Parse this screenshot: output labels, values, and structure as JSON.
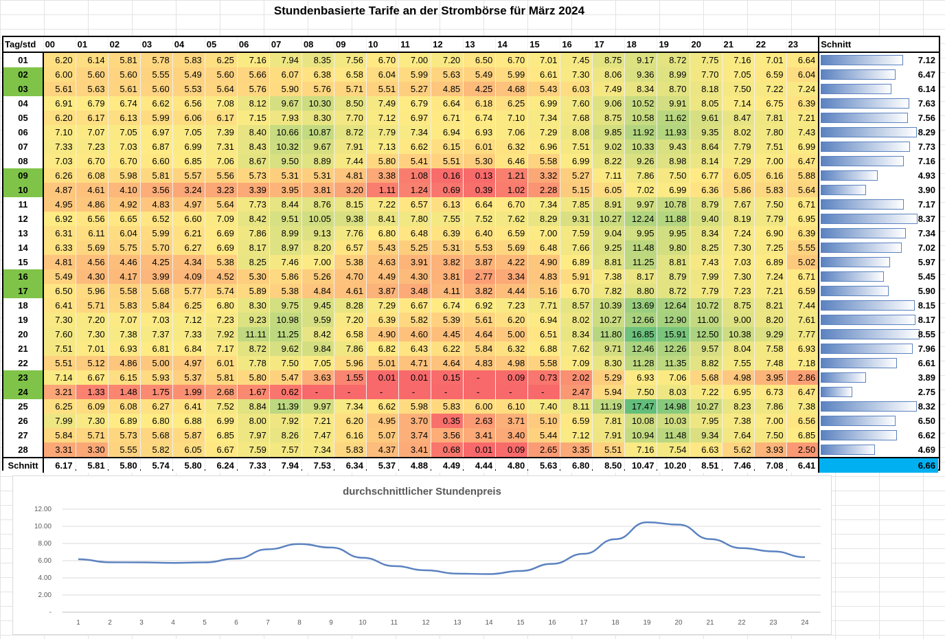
{
  "title": "Stundenbasierte Tarife an der Strombörse für März 2024",
  "table": {
    "corner_label": "Tag/std",
    "avg_label": "Schnitt",
    "footer_label": "Schnitt",
    "hours": [
      "00",
      "01",
      "02",
      "03",
      "04",
      "05",
      "06",
      "07",
      "08",
      "09",
      "10",
      "11",
      "12",
      "13",
      "14",
      "15",
      "16",
      "17",
      "18",
      "19",
      "20",
      "21",
      "22",
      "23"
    ],
    "highlighted_days": [
      "02",
      "03",
      "09",
      "10",
      "16",
      "17",
      "23",
      "24"
    ],
    "rows": [
      {
        "day": "01",
        "vals": [
          "6.20",
          "6.14",
          "5.81",
          "5.78",
          "5.83",
          "6.25",
          "7.16",
          "7.94",
          "8.35",
          "7.56",
          "6.70",
          "7.00",
          "7.20",
          "6.50",
          "6.70",
          "7.01",
          "7.45",
          "8.75",
          "9.17",
          "8.72",
          "7.75",
          "7.16",
          "7.01",
          "6.64"
        ],
        "avg": "7.12"
      },
      {
        "day": "02",
        "vals": [
          "6.00",
          "5.60",
          "5.60",
          "5.55",
          "5.49",
          "5.60",
          "5.66",
          "6.07",
          "6.38",
          "6.58",
          "6.04",
          "5.99",
          "5.63",
          "5.49",
          "5.99",
          "6.61",
          "7.30",
          "8.06",
          "9.36",
          "8.99",
          "7.70",
          "7.05",
          "6.59",
          "6.04"
        ],
        "avg": "6.47"
      },
      {
        "day": "03",
        "vals": [
          "5.61",
          "5.63",
          "5.61",
          "5.60",
          "5.53",
          "5.64",
          "5.76",
          "5.90",
          "5.76",
          "5.71",
          "5.51",
          "5.27",
          "4.85",
          "4.25",
          "4.68",
          "5.43",
          "6.03",
          "7.49",
          "8.34",
          "8.70",
          "8.18",
          "7.50",
          "7.22",
          "7.24"
        ],
        "avg": "6.14"
      },
      {
        "day": "04",
        "vals": [
          "6.91",
          "6.79",
          "6.74",
          "6.62",
          "6.56",
          "7.08",
          "8.12",
          "9.67",
          "10.30",
          "8.50",
          "7.49",
          "6.79",
          "6.64",
          "6.18",
          "6.25",
          "6.99",
          "7.60",
          "9.06",
          "10.52",
          "9.91",
          "8.05",
          "7.14",
          "6.75",
          "6.39"
        ],
        "avg": "7.63"
      },
      {
        "day": "05",
        "vals": [
          "6.20",
          "6.17",
          "6.13",
          "5.99",
          "6.06",
          "6.17",
          "7.15",
          "7.93",
          "8.30",
          "7.70",
          "7.12",
          "6.97",
          "6.71",
          "6.74",
          "7.10",
          "7.34",
          "7.68",
          "8.75",
          "10.58",
          "11.62",
          "9.61",
          "8.47",
          "7.81",
          "7.21"
        ],
        "avg": "7.56"
      },
      {
        "day": "06",
        "vals": [
          "7.10",
          "7.07",
          "7.05",
          "6.97",
          "7.05",
          "7.39",
          "8.40",
          "10.66",
          "10.87",
          "8.72",
          "7.79",
          "7.34",
          "6.94",
          "6.93",
          "7.06",
          "7.29",
          "8.08",
          "9.85",
          "11.92",
          "11.93",
          "9.35",
          "8.02",
          "7.80",
          "7.43"
        ],
        "avg": "8.29"
      },
      {
        "day": "07",
        "vals": [
          "7.33",
          "7.23",
          "7.03",
          "6.87",
          "6.99",
          "7.31",
          "8.43",
          "10.32",
          "9.67",
          "7.91",
          "7.13",
          "6.62",
          "6.15",
          "6.01",
          "6.32",
          "6.96",
          "7.51",
          "9.02",
          "10.33",
          "9.43",
          "8.64",
          "7.79",
          "7.51",
          "6.99"
        ],
        "avg": "7.73"
      },
      {
        "day": "08",
        "vals": [
          "7.03",
          "6.70",
          "6.70",
          "6.60",
          "6.85",
          "7.06",
          "8.67",
          "9.50",
          "8.89",
          "7.44",
          "5.80",
          "5.41",
          "5.51",
          "5.30",
          "6.46",
          "5.58",
          "6.99",
          "8.22",
          "9.26",
          "8.98",
          "8.14",
          "7.29",
          "7.00",
          "6.47"
        ],
        "avg": "7.16"
      },
      {
        "day": "09",
        "vals": [
          "6.26",
          "6.08",
          "5.98",
          "5.81",
          "5.57",
          "5.56",
          "5.73",
          "5.31",
          "5.31",
          "4.81",
          "3.38",
          "1.08",
          "0.16",
          "0.13",
          "1.21",
          "3.32",
          "5.27",
          "7.11",
          "7.86",
          "7.50",
          "6.77",
          "6.05",
          "6.16",
          "5.88"
        ],
        "avg": "4.93"
      },
      {
        "day": "10",
        "vals": [
          "4.87",
          "4.61",
          "4.10",
          "3.56",
          "3.24",
          "3.23",
          "3.39",
          "3.95",
          "3.81",
          "3.20",
          "1.11",
          "1.24",
          "0.69",
          "0.39",
          "1.02",
          "2.28",
          "5.15",
          "6.05",
          "7.02",
          "6.99",
          "6.36",
          "5.86",
          "5.83",
          "5.64"
        ],
        "avg": "3.90"
      },
      {
        "day": "11",
        "vals": [
          "4.95",
          "4.86",
          "4.92",
          "4.83",
          "4.97",
          "5.64",
          "7.73",
          "8.44",
          "8.76",
          "8.15",
          "7.22",
          "6.57",
          "6.13",
          "6.64",
          "6.70",
          "7.34",
          "7.85",
          "8.91",
          "9.97",
          "10.78",
          "8.79",
          "7.67",
          "7.50",
          "6.71"
        ],
        "avg": "7.17"
      },
      {
        "day": "12",
        "vals": [
          "6.92",
          "6.56",
          "6.65",
          "6.52",
          "6.60",
          "7.09",
          "8.42",
          "9.51",
          "10.05",
          "9.38",
          "8.41",
          "7.80",
          "7.55",
          "7.52",
          "7.62",
          "8.29",
          "9.31",
          "10.27",
          "12.24",
          "11.88",
          "9.40",
          "8.19",
          "7.79",
          "6.95"
        ],
        "avg": "8.37"
      },
      {
        "day": "13",
        "vals": [
          "6.31",
          "6.11",
          "6.04",
          "5.99",
          "6.21",
          "6.69",
          "7.86",
          "8.99",
          "9.13",
          "7.76",
          "6.80",
          "6.48",
          "6.39",
          "6.40",
          "6.59",
          "7.00",
          "7.59",
          "9.04",
          "9.95",
          "9.95",
          "8.34",
          "7.24",
          "6.90",
          "6.39"
        ],
        "avg": "7.34"
      },
      {
        "day": "14",
        "vals": [
          "6.33",
          "5.69",
          "5.75",
          "5.70",
          "6.27",
          "6.69",
          "8.17",
          "8.97",
          "8.20",
          "6.57",
          "5.43",
          "5.25",
          "5.31",
          "5.53",
          "5.69",
          "6.48",
          "7.66",
          "9.25",
          "11.48",
          "9.80",
          "8.25",
          "7.30",
          "7.25",
          "5.55"
        ],
        "avg": "7.02"
      },
      {
        "day": "15",
        "vals": [
          "4.81",
          "4.56",
          "4.46",
          "4.25",
          "4.34",
          "5.38",
          "8.25",
          "7.46",
          "7.00",
          "5.38",
          "4.63",
          "3.91",
          "3.82",
          "3.87",
          "4.22",
          "4.90",
          "6.89",
          "8.81",
          "11.25",
          "8.81",
          "7.43",
          "7.03",
          "6.89",
          "5.02"
        ],
        "avg": "5.97"
      },
      {
        "day": "16",
        "vals": [
          "5.49",
          "4.30",
          "4.17",
          "3.99",
          "4.09",
          "4.52",
          "5.30",
          "5.86",
          "5.26",
          "4.70",
          "4.49",
          "4.30",
          "3.81",
          "2.77",
          "3.34",
          "4.83",
          "5.91",
          "7.38",
          "8.17",
          "8.79",
          "7.99",
          "7.30",
          "7.24",
          "6.71"
        ],
        "avg": "5.45"
      },
      {
        "day": "17",
        "vals": [
          "6.50",
          "5.96",
          "5.58",
          "5.68",
          "5.77",
          "5.74",
          "5.89",
          "5.38",
          "4.84",
          "4.61",
          "3.87",
          "3.48",
          "4.11",
          "3.82",
          "4.44",
          "5.16",
          "6.70",
          "7.82",
          "8.80",
          "8.72",
          "7.79",
          "7.23",
          "7.21",
          "6.59"
        ],
        "avg": "5.90"
      },
      {
        "day": "18",
        "vals": [
          "6.41",
          "5.71",
          "5.83",
          "5.84",
          "6.25",
          "6.80",
          "8.30",
          "9.75",
          "9.45",
          "8.28",
          "7.29",
          "6.67",
          "6.74",
          "6.92",
          "7.23",
          "7.71",
          "8.57",
          "10.39",
          "13.69",
          "12.64",
          "10.72",
          "8.75",
          "8.21",
          "7.44"
        ],
        "avg": "8.15"
      },
      {
        "day": "19",
        "vals": [
          "7.30",
          "7.20",
          "7.07",
          "7.03",
          "7.12",
          "7.23",
          "9.23",
          "10.98",
          "9.59",
          "7.20",
          "6.39",
          "5.82",
          "5.39",
          "5.61",
          "6.20",
          "6.94",
          "8.02",
          "10.27",
          "12.66",
          "12.90",
          "11.00",
          "9.00",
          "8.20",
          "7.61"
        ],
        "avg": "8.17"
      },
      {
        "day": "20",
        "vals": [
          "7.60",
          "7.30",
          "7.38",
          "7.37",
          "7.33",
          "7.92",
          "11.11",
          "11.25",
          "8.42",
          "6.58",
          "4.90",
          "4.60",
          "4.45",
          "4.64",
          "5.00",
          "6.51",
          "8.34",
          "11.80",
          "16.85",
          "15.91",
          "12.50",
          "10.38",
          "9.29",
          "7.77"
        ],
        "avg": "8.55"
      },
      {
        "day": "21",
        "vals": [
          "7.51",
          "7.01",
          "6.93",
          "6.81",
          "6.84",
          "7.17",
          "8.72",
          "9.62",
          "9.84",
          "7.86",
          "6.82",
          "6.43",
          "6.22",
          "5.84",
          "6.32",
          "6.88",
          "7.62",
          "9.71",
          "12.46",
          "12.26",
          "9.57",
          "8.04",
          "7.58",
          "6.93"
        ],
        "avg": "7.96"
      },
      {
        "day": "22",
        "vals": [
          "5.51",
          "5.12",
          "4.86",
          "5.00",
          "4.97",
          "6.01",
          "7.78",
          "7.50",
          "7.05",
          "5.96",
          "5.01",
          "4.71",
          "4.64",
          "4.83",
          "4.98",
          "5.58",
          "7.09",
          "8.30",
          "11.28",
          "11.35",
          "8.82",
          "7.55",
          "7.48",
          "7.18"
        ],
        "avg": "6.61"
      },
      {
        "day": "23",
        "vals": [
          "7.14",
          "6.67",
          "6.15",
          "5.93",
          "5.37",
          "5.81",
          "5.80",
          "5.47",
          "3.63",
          "1.55",
          "0.01",
          "0.01",
          "0.15",
          "-",
          "0.09",
          "0.73",
          "2.02",
          "5.29",
          "6.93",
          "7.06",
          "5.68",
          "4.98",
          "3.95",
          "2.86"
        ],
        "avg": "3.89"
      },
      {
        "day": "24",
        "vals": [
          "3.21",
          "1.33",
          "1.48",
          "1.75",
          "1.99",
          "2.68",
          "1.67",
          "0.62",
          "-",
          "-",
          "-",
          "-",
          "-",
          "-",
          "-",
          "-",
          "2.47",
          "5.94",
          "7.50",
          "8.03",
          "7.22",
          "6.95",
          "6.73",
          "6.47"
        ],
        "avg": "2.75"
      },
      {
        "day": "25",
        "vals": [
          "6.25",
          "6.09",
          "6.08",
          "6.27",
          "6.41",
          "7.52",
          "8.84",
          "11.39",
          "9.97",
          "7.34",
          "6.62",
          "5.98",
          "5.83",
          "6.00",
          "6.10",
          "7.40",
          "8.11",
          "11.19",
          "17.47",
          "14.98",
          "10.27",
          "8.23",
          "7.86",
          "7.38"
        ],
        "avg": "8.32"
      },
      {
        "day": "26",
        "vals": [
          "7.99",
          "7.30",
          "6.89",
          "6.80",
          "6.88",
          "6.99",
          "8.00",
          "7.92",
          "7.21",
          "6.20",
          "4.95",
          "3.70",
          "0.35",
          "2.63",
          "3.71",
          "5.10",
          "6.59",
          "7.81",
          "10.08",
          "10.03",
          "7.95",
          "7.38",
          "7.00",
          "6.56"
        ],
        "avg": "6.50"
      },
      {
        "day": "27",
        "vals": [
          "5.84",
          "5.71",
          "5.73",
          "5.68",
          "5.87",
          "6.85",
          "7.97",
          "8.26",
          "7.47",
          "6.16",
          "5.07",
          "3.74",
          "3.56",
          "3.41",
          "3.40",
          "5.44",
          "7.12",
          "7.91",
          "10.94",
          "11.48",
          "9.34",
          "7.64",
          "7.50",
          "6.85"
        ],
        "avg": "6.62"
      },
      {
        "day": "28",
        "vals": [
          "3.31",
          "3.30",
          "5.55",
          "5.82",
          "6.05",
          "6.67",
          "7.59",
          "7.57",
          "7.34",
          "5.83",
          "4.37",
          "3.41",
          "0.68",
          "0.01",
          "0.09",
          "2.65",
          "3.35",
          "5.51",
          "7.16",
          "7.54",
          "6.63",
          "5.62",
          "3.93",
          "2.50"
        ],
        "avg": "4.69"
      }
    ],
    "footer_vals": [
      "6.17",
      "5.81",
      "5.80",
      "5.74",
      "5.80",
      "6.24",
      "7.33",
      "7.94",
      "7.53",
      "6.34",
      "5.37",
      "4.88",
      "4.49",
      "4.44",
      "4.80",
      "5.63",
      "6.80",
      "8.50",
      "10.47",
      "10.20",
      "8.51",
      "7.46",
      "7.08",
      "6.41"
    ],
    "footer_avg": "6.66"
  },
  "colors": {
    "scale_low": "#f8696b",
    "scale_mid": "#ffeb84",
    "scale_high": "#63be7b",
    "highlight_day": "#7fc448",
    "bar": "#5b82c0",
    "footer_avg_bg": "#00b0f0",
    "line": "#5b82c0"
  },
  "chart_data": {
    "type": "line",
    "title": "durchschnittlicher Stundenpreis",
    "x": [
      1,
      2,
      3,
      4,
      5,
      6,
      7,
      8,
      9,
      10,
      11,
      12,
      13,
      14,
      15,
      16,
      17,
      18,
      19,
      20,
      21,
      22,
      23,
      24
    ],
    "series": [
      {
        "values": [
          6.17,
          5.81,
          5.8,
          5.74,
          5.8,
          6.24,
          7.33,
          7.94,
          7.53,
          6.34,
          5.37,
          4.88,
          4.49,
          4.44,
          4.8,
          5.63,
          6.8,
          8.5,
          10.47,
          10.2,
          8.51,
          7.46,
          7.08,
          6.41
        ]
      }
    ],
    "y_ticks": [
      "-",
      "2.00",
      "4.00",
      "6.00",
      "8.00",
      "10.00",
      "12.00"
    ],
    "ylim": [
      0,
      12
    ],
    "grid": true,
    "legend": "none"
  }
}
